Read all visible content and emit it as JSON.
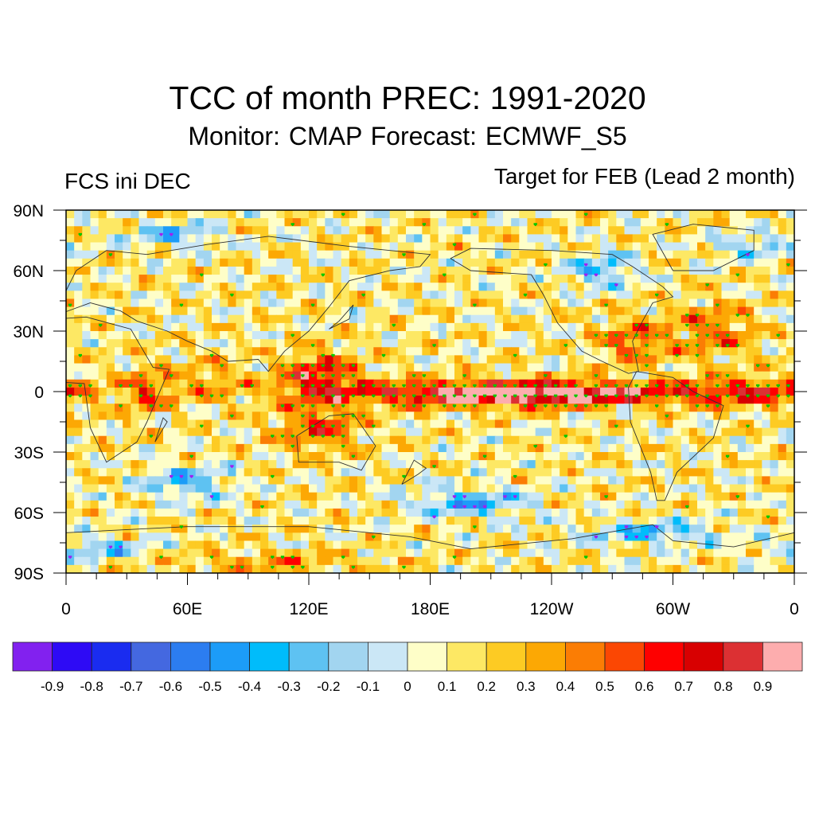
{
  "header": {
    "title": "TCC of month PREC: 1991-2020",
    "subtitle": "Monitor: CMAP   Forecast: ECMWF_S5",
    "left_label": "FCS ini DEC",
    "right_label": "Target for FEB (Lead 2 month)"
  },
  "chart_data": {
    "type": "heatmap",
    "title": "TCC of month PREC: 1991-2020",
    "subtitle": "Monitor: CMAP   Forecast: ECMWF_S5",
    "left_annotation": "FCS ini DEC",
    "right_annotation": "Target for FEB (Lead 2 month)",
    "projection": "cylindrical equidistant, global, centered 180E",
    "x_axis": {
      "range_deg_east": [
        0,
        360
      ],
      "major_ticks_deg": [
        0,
        60,
        120,
        180,
        240,
        300,
        360
      ],
      "tick_labels": [
        "0",
        "60E",
        "120E",
        "180E",
        "120W",
        "60W",
        "0"
      ],
      "minor_tick_step_deg": 15
    },
    "y_axis": {
      "range_deg": [
        -90,
        90
      ],
      "major_ticks_deg": [
        90,
        60,
        30,
        0,
        -30,
        -60,
        -90
      ],
      "tick_labels": [
        "90N",
        "60N",
        "30N",
        "0",
        "30S",
        "60S",
        "90S"
      ],
      "minor_tick_step_deg": 15
    },
    "colorbar": {
      "orientation": "horizontal",
      "placement": "bottom",
      "levels": [
        -0.9,
        -0.8,
        -0.7,
        -0.6,
        -0.5,
        -0.4,
        -0.3,
        -0.2,
        -0.1,
        0,
        0.1,
        0.2,
        0.3,
        0.4,
        0.5,
        0.6,
        0.7,
        0.8,
        0.9
      ],
      "labels": [
        "-0.9",
        "-0.8",
        "-0.7",
        "-0.6",
        "-0.5",
        "-0.4",
        "-0.3",
        "-0.2",
        "-0.1",
        "0",
        "0.1",
        "0.2",
        "0.3",
        "0.4",
        "0.5",
        "0.6",
        "0.7",
        "0.8",
        "0.9"
      ],
      "colors": [
        "#8221ef",
        "#2e0af5",
        "#1a2cf0",
        "#4468e0",
        "#2c7df0",
        "#1c9cf8",
        "#00bcfb",
        "#5ec2f2",
        "#a2d5f0",
        "#cbe7f6",
        "#fefec8",
        "#fde864",
        "#fdcb23",
        "#fca804",
        "#fb7d04",
        "#fb4703",
        "#fe0000",
        "#d80001",
        "#dc3033",
        "#fdadae"
      ]
    },
    "significance_markers": {
      "positive": {
        "color": "#00c800",
        "meaning": "significant positive correlation"
      },
      "negative": {
        "color": "#a020f0",
        "meaning": "significant negative correlation"
      }
    },
    "features": [
      {
        "region": "Equatorial central-eastern Pacific (160E-95W, 10S-5N)",
        "tcc_range": [
          0.6,
          0.9
        ],
        "peak": "> 0.9 near 160W-115W on equator"
      },
      {
        "region": "Maritime Continent / Philippines (110E-140E, 0-15N)",
        "tcc_range": [
          0.5,
          0.8
        ]
      },
      {
        "region": "Northern Australia / Indonesia (100E-140E, 10S-25S)",
        "tcc_range": [
          0.4,
          0.7
        ]
      },
      {
        "region": "Equatorial Atlantic / NE Brazil (50W-0, 5S-5N)",
        "tcc_range": [
          0.5,
          0.7
        ]
      },
      {
        "region": "Southeastern USA / Gulf of Mexico / Caribbean",
        "tcc_range": [
          0.4,
          0.7
        ]
      },
      {
        "region": "Subtropical North Atlantic (60W-20W, 15N-40N)",
        "tcc_range": [
          0.4,
          0.6
        ]
      },
      {
        "region": "East Africa / western Indian Ocean",
        "tcc_range": [
          0.4,
          0.7
        ]
      },
      {
        "region": "Southern Ocean south of Australia / SE Pacific",
        "tcc_range": [
          -0.5,
          -0.2
        ]
      },
      {
        "region": "Arctic / northern Canada / Barents Sea",
        "tcc_range": [
          -0.5,
          -0.2
        ]
      },
      {
        "region": "Southern Indian Ocean (40E-80E, 35S-55S)",
        "tcc_range": [
          -0.5,
          -0.2
        ]
      }
    ]
  }
}
